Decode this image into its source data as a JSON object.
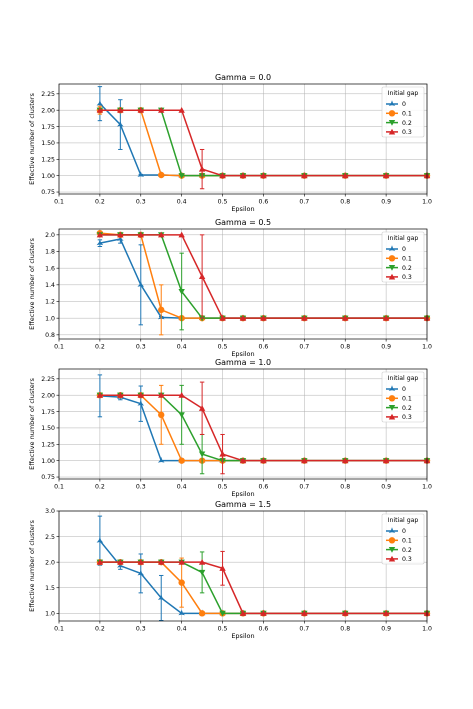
{
  "chart_data": [
    {
      "type": "line",
      "title": "Gamma = 0.0",
      "xlabel": "Epsilon",
      "ylabel": "Effective number of clusters",
      "xlim": [
        0.1,
        1.0
      ],
      "ylim": [
        0.72,
        2.4
      ],
      "xticks": [
        "0.1",
        "0.2",
        "0.3",
        "0.4",
        "0.5",
        "0.6",
        "0.7",
        "0.8",
        "0.9",
        "1.0"
      ],
      "yticks": [
        "0.75",
        "1.00",
        "1.25",
        "1.50",
        "1.75",
        "2.00",
        "2.25"
      ],
      "grid": true,
      "legend_title": "Initial gap",
      "legend_position": "top-right",
      "series": [
        {
          "name": "0",
          "x": [
            0.2,
            0.25,
            0.3,
            0.35,
            0.4,
            0.45,
            0.5,
            0.55,
            0.6,
            0.7,
            0.8,
            0.9,
            1.0
          ],
          "y": [
            2.1,
            1.78,
            1.01,
            1.01,
            1.0,
            1.0,
            1.0,
            1.0,
            1.0,
            1.0,
            1.0,
            1.0,
            1.0
          ],
          "err": [
            0.26,
            0.38,
            0.01,
            0.01,
            0,
            0,
            0,
            0,
            0,
            0,
            0,
            0,
            0
          ]
        },
        {
          "name": "0.1",
          "x": [
            0.2,
            0.25,
            0.3,
            0.35,
            0.4,
            0.45,
            0.5,
            0.55,
            0.6,
            0.7,
            0.8,
            0.9,
            1.0
          ],
          "y": [
            2.0,
            2.0,
            2.0,
            1.01,
            1.0,
            1.0,
            1.0,
            1.0,
            1.0,
            1.0,
            1.0,
            1.0,
            1.0
          ],
          "err": [
            0.06,
            0,
            0,
            0.01,
            0,
            0,
            0,
            0,
            0,
            0,
            0,
            0,
            0
          ]
        },
        {
          "name": "0.2",
          "x": [
            0.2,
            0.25,
            0.3,
            0.35,
            0.4,
            0.45,
            0.5,
            0.55,
            0.6,
            0.7,
            0.8,
            0.9,
            1.0
          ],
          "y": [
            2.0,
            2.0,
            2.0,
            2.0,
            1.0,
            1.0,
            1.0,
            1.0,
            1.0,
            1.0,
            1.0,
            1.0,
            1.0
          ],
          "err": [
            0,
            0,
            0,
            0,
            0,
            0,
            0,
            0,
            0,
            0,
            0,
            0,
            0
          ]
        },
        {
          "name": "0.3",
          "x": [
            0.2,
            0.25,
            0.3,
            0.35,
            0.4,
            0.45,
            0.5,
            0.55,
            0.6,
            0.7,
            0.8,
            0.9,
            1.0
          ],
          "y": [
            2.0,
            2.0,
            2.0,
            2.0,
            2.0,
            1.1,
            1.0,
            1.0,
            1.0,
            1.0,
            1.0,
            1.0,
            1.0
          ],
          "err": [
            0,
            0,
            0,
            0,
            0,
            0.3,
            0,
            0,
            0,
            0,
            0,
            0,
            0
          ]
        }
      ]
    },
    {
      "type": "line",
      "title": "Gamma = 0.5",
      "xlabel": "Epsilon",
      "ylabel": "Effective number of clusters",
      "xlim": [
        0.1,
        1.0
      ],
      "ylim": [
        0.75,
        2.07
      ],
      "xticks": [
        "0.1",
        "0.2",
        "0.3",
        "0.4",
        "0.5",
        "0.6",
        "0.7",
        "0.8",
        "0.9",
        "1.0"
      ],
      "yticks": [
        "0.8",
        "1.0",
        "1.2",
        "1.4",
        "1.6",
        "1.8",
        "2.0"
      ],
      "grid": true,
      "legend_title": "Initial gap",
      "legend_position": "top-right",
      "series": [
        {
          "name": "0",
          "x": [
            0.2,
            0.25,
            0.3,
            0.35,
            0.4,
            0.45,
            0.5,
            0.55,
            0.6,
            0.7,
            0.8,
            0.9,
            1.0
          ],
          "y": [
            1.9,
            1.95,
            1.4,
            1.01,
            1.0,
            1.0,
            1.0,
            1.0,
            1.0,
            1.0,
            1.0,
            1.0,
            1.0
          ],
          "err": [
            0.04,
            0.05,
            0.48,
            0.01,
            0,
            0,
            0,
            0,
            0,
            0,
            0,
            0,
            0
          ]
        },
        {
          "name": "0.1",
          "x": [
            0.2,
            0.25,
            0.3,
            0.35,
            0.4,
            0.45,
            0.5,
            0.55,
            0.6,
            0.7,
            0.8,
            0.9,
            1.0
          ],
          "y": [
            2.02,
            2.0,
            2.0,
            1.1,
            1.0,
            1.0,
            1.0,
            1.0,
            1.0,
            1.0,
            1.0,
            1.0,
            1.0
          ],
          "err": [
            0.02,
            0,
            0.02,
            0.3,
            0,
            0,
            0,
            0,
            0,
            0,
            0,
            0,
            0
          ]
        },
        {
          "name": "0.2",
          "x": [
            0.2,
            0.25,
            0.3,
            0.35,
            0.4,
            0.45,
            0.5,
            0.55,
            0.6,
            0.7,
            0.8,
            0.9,
            1.0
          ],
          "y": [
            2.0,
            2.0,
            2.0,
            2.0,
            1.32,
            1.0,
            1.0,
            1.0,
            1.0,
            1.0,
            1.0,
            1.0,
            1.0
          ],
          "err": [
            0,
            0,
            0,
            0,
            0.46,
            0,
            0,
            0,
            0,
            0,
            0,
            0,
            0
          ]
        },
        {
          "name": "0.3",
          "x": [
            0.2,
            0.25,
            0.3,
            0.35,
            0.4,
            0.45,
            0.5,
            0.55,
            0.6,
            0.7,
            0.8,
            0.9,
            1.0
          ],
          "y": [
            2.0,
            2.0,
            2.0,
            2.0,
            2.0,
            1.5,
            1.0,
            1.0,
            1.0,
            1.0,
            1.0,
            1.0,
            1.0
          ],
          "err": [
            0,
            0,
            0,
            0,
            0,
            0.5,
            0,
            0,
            0,
            0,
            0,
            0,
            0
          ]
        }
      ]
    },
    {
      "type": "line",
      "title": "Gamma = 1.0",
      "xlabel": "Epsilon",
      "ylabel": "Effective number of clusters",
      "xlim": [
        0.1,
        1.0
      ],
      "ylim": [
        0.72,
        2.4
      ],
      "xticks": [
        "0.1",
        "0.2",
        "0.3",
        "0.4",
        "0.5",
        "0.6",
        "0.7",
        "0.8",
        "0.9",
        "1.0"
      ],
      "yticks": [
        "0.75",
        "1.00",
        "1.25",
        "1.50",
        "1.75",
        "2.00",
        "2.25"
      ],
      "grid": true,
      "legend_title": "Initial gap",
      "legend_position": "top-right",
      "series": [
        {
          "name": "0",
          "x": [
            0.2,
            0.25,
            0.3,
            0.35,
            0.4,
            0.45,
            0.5,
            0.55,
            0.6,
            0.7,
            0.8,
            0.9,
            1.0
          ],
          "y": [
            1.99,
            1.97,
            1.87,
            1.0,
            1.0,
            1.0,
            1.0,
            1.0,
            1.0,
            1.0,
            1.0,
            1.0,
            1.0
          ],
          "err": [
            0.32,
            0.04,
            0.27,
            0,
            0,
            0,
            0,
            0,
            0,
            0,
            0,
            0,
            0
          ]
        },
        {
          "name": "0.1",
          "x": [
            0.2,
            0.25,
            0.3,
            0.35,
            0.4,
            0.45,
            0.5,
            0.55,
            0.6,
            0.7,
            0.8,
            0.9,
            1.0
          ],
          "y": [
            2.0,
            2.0,
            2.0,
            1.7,
            1.0,
            1.0,
            1.0,
            1.0,
            1.0,
            1.0,
            1.0,
            1.0,
            1.0
          ],
          "err": [
            0,
            0,
            0,
            0.45,
            0,
            0,
            0,
            0,
            0,
            0,
            0,
            0,
            0
          ]
        },
        {
          "name": "0.2",
          "x": [
            0.2,
            0.25,
            0.3,
            0.35,
            0.4,
            0.45,
            0.5,
            0.55,
            0.6,
            0.7,
            0.8,
            0.9,
            1.0
          ],
          "y": [
            2.0,
            2.0,
            2.0,
            2.0,
            1.7,
            1.1,
            1.0,
            1.0,
            1.0,
            1.0,
            1.0,
            1.0,
            1.0
          ],
          "err": [
            0,
            0,
            0,
            0,
            0.45,
            0.3,
            0,
            0,
            0,
            0,
            0,
            0,
            0
          ]
        },
        {
          "name": "0.3",
          "x": [
            0.2,
            0.25,
            0.3,
            0.35,
            0.4,
            0.45,
            0.5,
            0.55,
            0.6,
            0.7,
            0.8,
            0.9,
            1.0
          ],
          "y": [
            2.0,
            2.0,
            2.0,
            2.0,
            2.0,
            1.8,
            1.1,
            1.0,
            1.0,
            1.0,
            1.0,
            1.0,
            1.0
          ],
          "err": [
            0,
            0,
            0,
            0,
            0,
            0.4,
            0.3,
            0,
            0,
            0,
            0,
            0,
            0
          ]
        }
      ]
    },
    {
      "type": "line",
      "title": "Gamma = 1.5",
      "xlabel": "Epsilon",
      "ylabel": "Effective number of clusters",
      "xlim": [
        0.1,
        1.0
      ],
      "ylim": [
        0.85,
        3.0
      ],
      "xticks": [
        "0.1",
        "0.2",
        "0.3",
        "0.4",
        "0.5",
        "0.6",
        "0.7",
        "0.8",
        "0.9",
        "1.0"
      ],
      "yticks": [
        "1.0",
        "1.5",
        "2.0",
        "2.5",
        "3.0"
      ],
      "grid": true,
      "legend_title": "Initial gap",
      "legend_position": "top-right",
      "series": [
        {
          "name": "0",
          "x": [
            0.2,
            0.25,
            0.3,
            0.35,
            0.4,
            0.45,
            0.5,
            0.55,
            0.6,
            0.7,
            0.8,
            0.9,
            1.0
          ],
          "y": [
            2.42,
            1.93,
            1.78,
            1.3,
            1.0,
            1.0,
            1.0,
            1.0,
            1.0,
            1.0,
            1.0,
            1.0,
            1.0
          ],
          "err": [
            0.48,
            0.07,
            0.38,
            0.44,
            0,
            0,
            0,
            0,
            0,
            0,
            0,
            0,
            0
          ]
        },
        {
          "name": "0.1",
          "x": [
            0.2,
            0.25,
            0.3,
            0.35,
            0.4,
            0.45,
            0.5,
            0.55,
            0.6,
            0.7,
            0.8,
            0.9,
            1.0
          ],
          "y": [
            2.0,
            2.0,
            2.0,
            2.0,
            1.6,
            1.0,
            1.0,
            1.0,
            1.0,
            1.0,
            1.0,
            1.0,
            1.0
          ],
          "err": [
            0,
            0,
            0,
            0,
            0.48,
            0,
            0,
            0,
            0,
            0,
            0,
            0,
            0
          ]
        },
        {
          "name": "0.2",
          "x": [
            0.2,
            0.25,
            0.3,
            0.35,
            0.4,
            0.45,
            0.5,
            0.55,
            0.6,
            0.7,
            0.8,
            0.9,
            1.0
          ],
          "y": [
            2.0,
            2.0,
            2.0,
            2.0,
            2.0,
            1.8,
            1.0,
            1.0,
            1.0,
            1.0,
            1.0,
            1.0,
            1.0
          ],
          "err": [
            0,
            0,
            0,
            0,
            0,
            0.4,
            0,
            0,
            0,
            0,
            0,
            0,
            0
          ]
        },
        {
          "name": "0.3",
          "x": [
            0.2,
            0.25,
            0.3,
            0.35,
            0.4,
            0.45,
            0.5,
            0.55,
            0.6,
            0.7,
            0.8,
            0.9,
            1.0
          ],
          "y": [
            2.0,
            2.0,
            2.0,
            2.0,
            2.0,
            2.0,
            1.88,
            1.0,
            1.0,
            1.0,
            1.0,
            1.0,
            1.0
          ],
          "err": [
            0,
            0,
            0,
            0,
            0,
            0,
            0.33,
            0,
            0,
            0,
            0,
            0,
            0
          ]
        }
      ]
    }
  ],
  "colors": {
    "series": [
      "#1f77b4",
      "#ff7f0e",
      "#2ca02c",
      "#d62728"
    ],
    "grid": "#b0b0b0",
    "axis": "#000000"
  },
  "markers": [
    "star",
    "circle",
    "triangle-down",
    "triangle-up"
  ]
}
